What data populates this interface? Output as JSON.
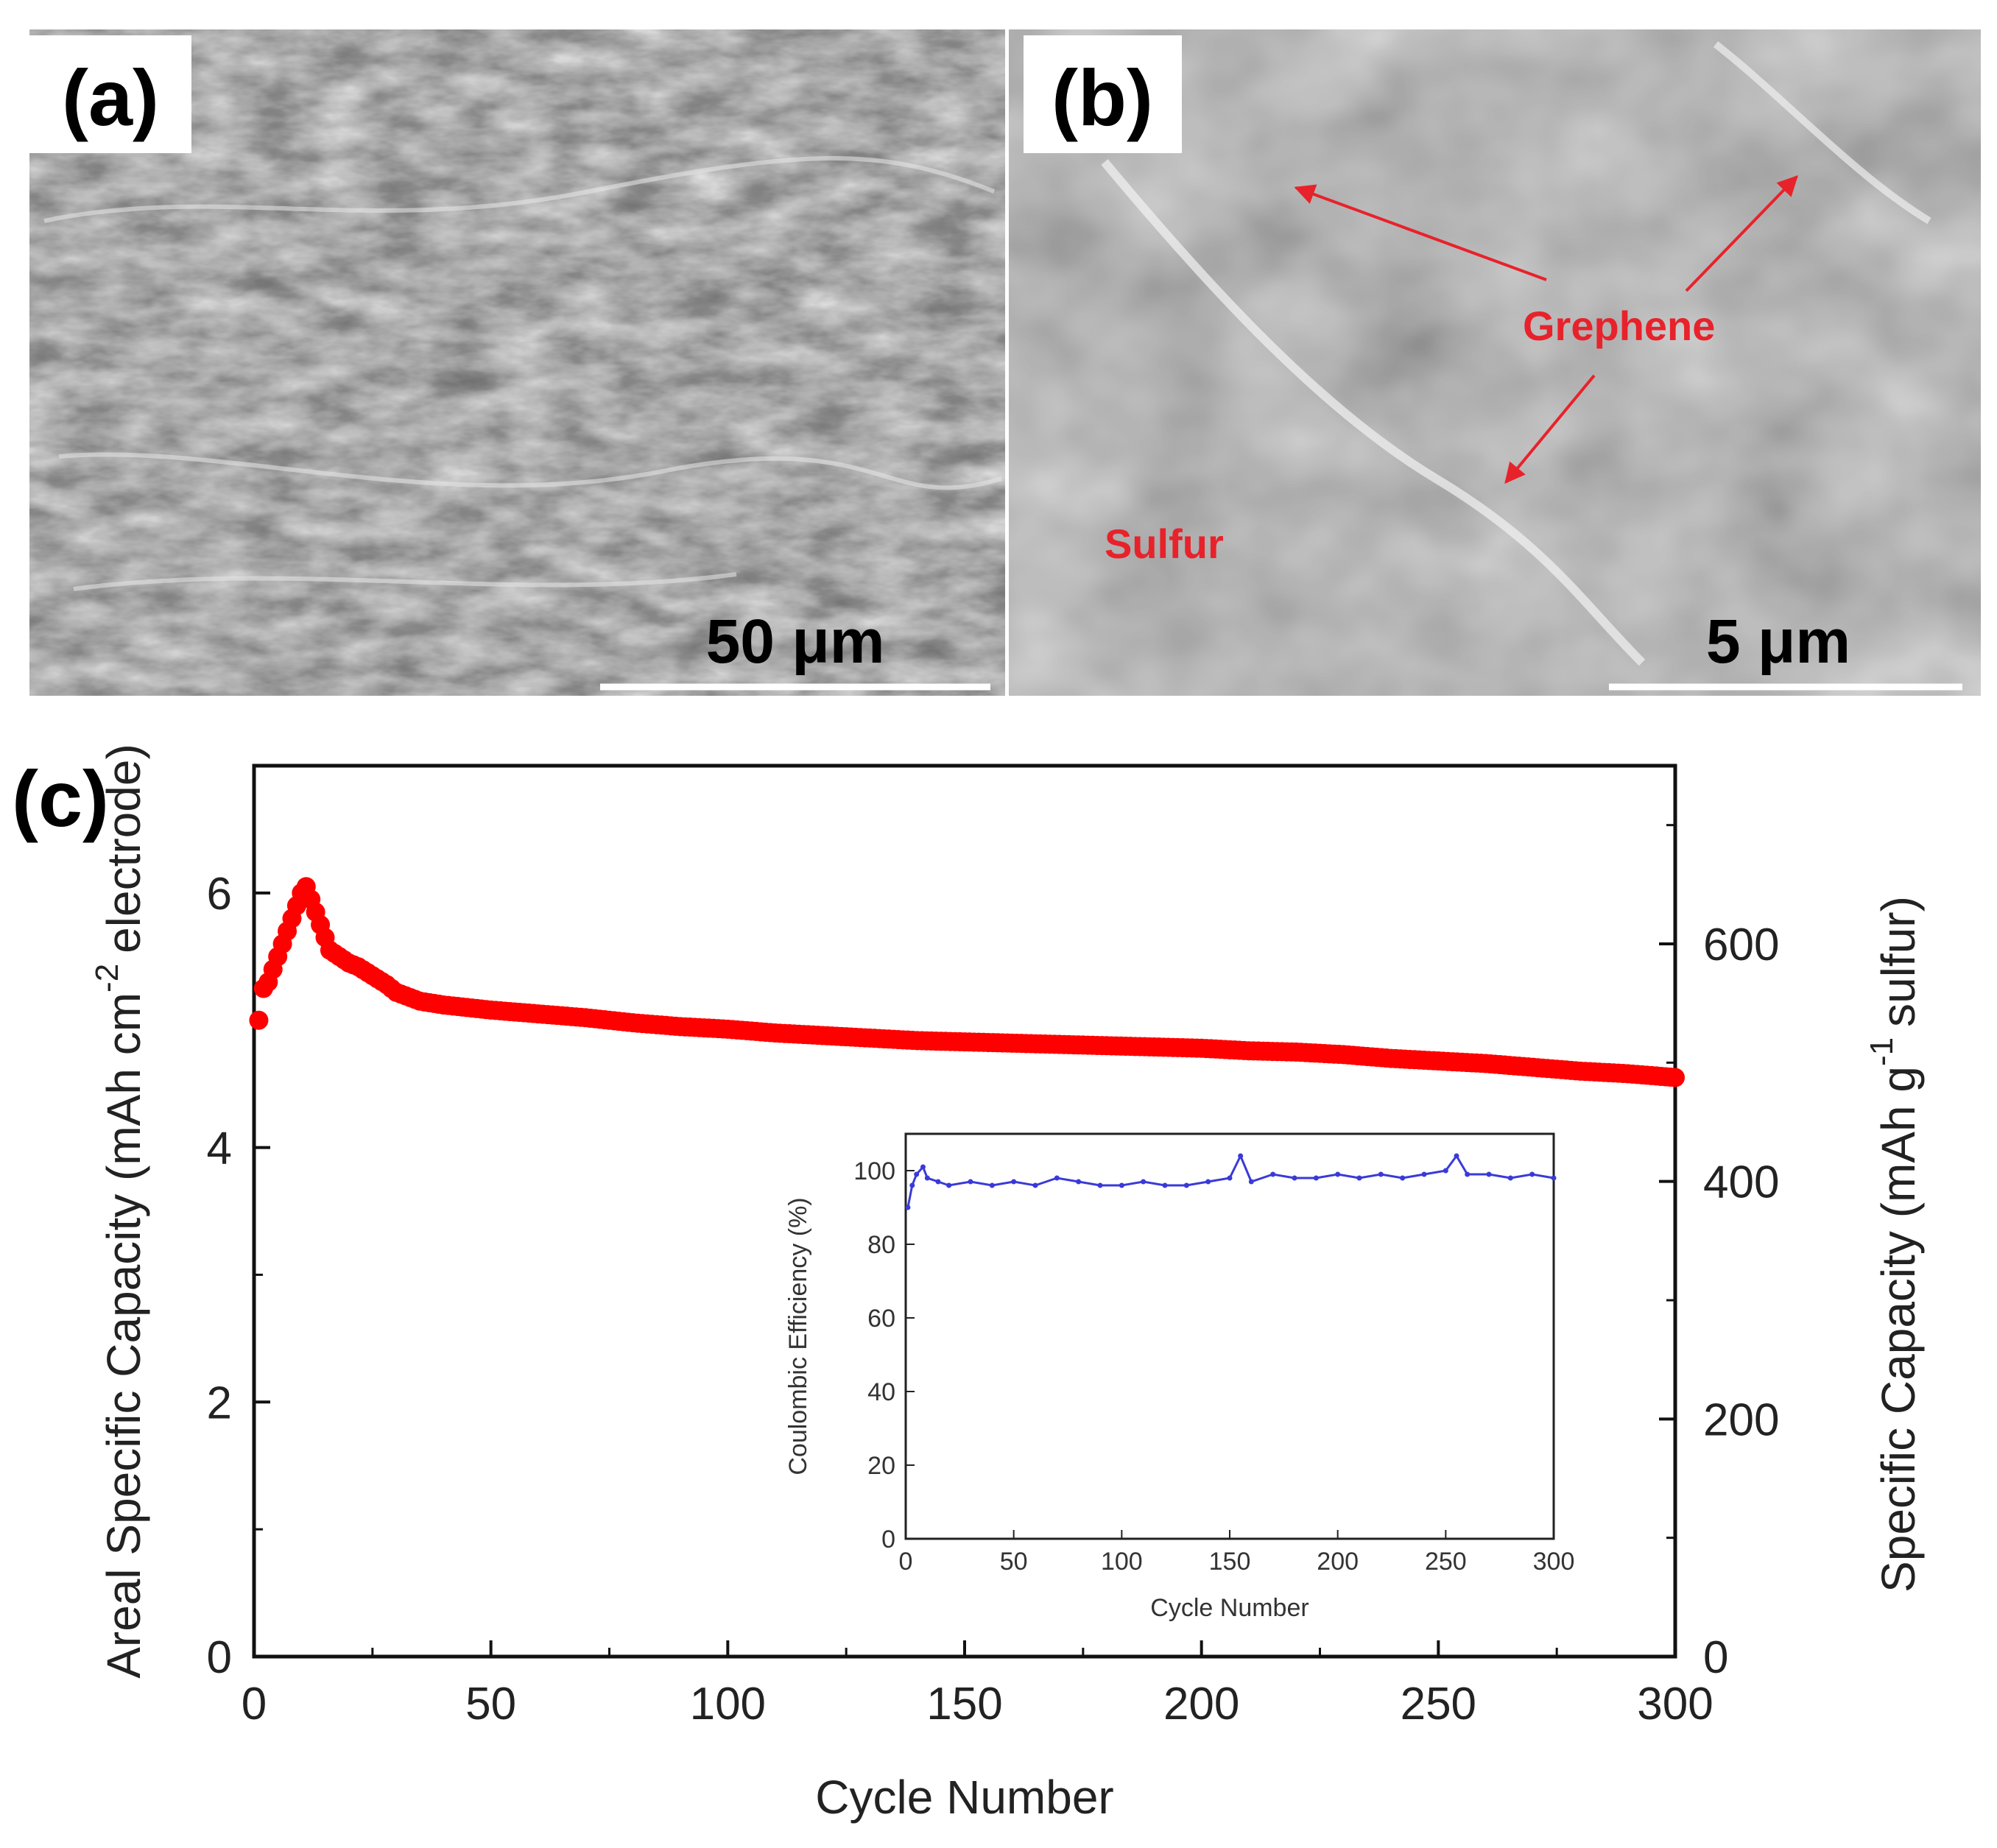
{
  "panels": {
    "a": {
      "letter": "(a)",
      "scale_bar": "50 μm"
    },
    "b": {
      "letter": "(b)",
      "scale_bar": "5 μm",
      "labels": [
        "Grephene",
        "Sulfur"
      ]
    },
    "c": {
      "letter": "(c)"
    }
  },
  "colors": {
    "capacity_series": "#ff0000",
    "efficiency_series": "#3a3ad8",
    "sem_label": "#e8222b"
  },
  "chart_data": [
    {
      "type": "scatter",
      "xlabel": "Cycle Number",
      "ylabel": "Areal Specific Capacity (mAh cm-2 electrode)",
      "ylabel_parts": [
        "Areal Specific Capacity (mAh cm",
        "-2",
        "electrode)"
      ],
      "y2label": "Specific Capacity (mAh g-1 sulfur)",
      "y2label_parts": [
        "Specific Capacity (mAh g",
        "-1",
        "sulfur)"
      ],
      "xlim": [
        0,
        300
      ],
      "ylim": [
        0,
        7
      ],
      "y2lim": [
        0,
        750
      ],
      "xticks": [
        0,
        50,
        100,
        150,
        200,
        250,
        300
      ],
      "yticks": [
        0,
        2,
        4,
        6
      ],
      "y2ticks": [
        0,
        200,
        400,
        600
      ],
      "series": [
        {
          "x": [
            1,
            2,
            3,
            4,
            5,
            6,
            7,
            8,
            9,
            10,
            11,
            12,
            13,
            14,
            15,
            16,
            18,
            20,
            22,
            25,
            28,
            30,
            35,
            40,
            45,
            50,
            60,
            70,
            80,
            90,
            100,
            110,
            120,
            130,
            140,
            150,
            160,
            170,
            180,
            190,
            200,
            210,
            220,
            230,
            240,
            250,
            260,
            270,
            280,
            290,
            300
          ],
          "y": [
            5.0,
            5.25,
            5.3,
            5.4,
            5.5,
            5.6,
            5.7,
            5.8,
            5.9,
            6.0,
            6.05,
            5.95,
            5.85,
            5.75,
            5.65,
            5.55,
            5.5,
            5.45,
            5.42,
            5.35,
            5.28,
            5.22,
            5.15,
            5.12,
            5.1,
            5.08,
            5.05,
            5.02,
            4.98,
            4.95,
            4.93,
            4.9,
            4.88,
            4.86,
            4.84,
            4.83,
            4.82,
            4.81,
            4.8,
            4.79,
            4.78,
            4.76,
            4.75,
            4.73,
            4.7,
            4.68,
            4.66,
            4.63,
            4.6,
            4.58,
            4.55
          ]
        }
      ]
    },
    {
      "type": "line",
      "xlabel": "Cycle Number",
      "ylabel": "Coulombic Efficiency (%)",
      "xlim": [
        0,
        300
      ],
      "ylim": [
        0,
        110
      ],
      "xticks": [
        0,
        50,
        100,
        150,
        200,
        250,
        300
      ],
      "yticks": [
        0,
        20,
        40,
        60,
        80,
        100
      ],
      "series": [
        {
          "x": [
            1,
            3,
            5,
            8,
            10,
            15,
            20,
            30,
            40,
            50,
            60,
            70,
            80,
            90,
            100,
            110,
            120,
            130,
            140,
            150,
            155,
            160,
            170,
            180,
            190,
            200,
            210,
            220,
            230,
            240,
            250,
            255,
            260,
            270,
            280,
            290,
            300
          ],
          "y": [
            90,
            96,
            99,
            101,
            98,
            97,
            96,
            97,
            96,
            97,
            96,
            98,
            97,
            96,
            96,
            97,
            96,
            96,
            97,
            98,
            104,
            97,
            99,
            98,
            98,
            99,
            98,
            99,
            98,
            99,
            100,
            104,
            99,
            99,
            98,
            99,
            98
          ]
        }
      ]
    }
  ]
}
